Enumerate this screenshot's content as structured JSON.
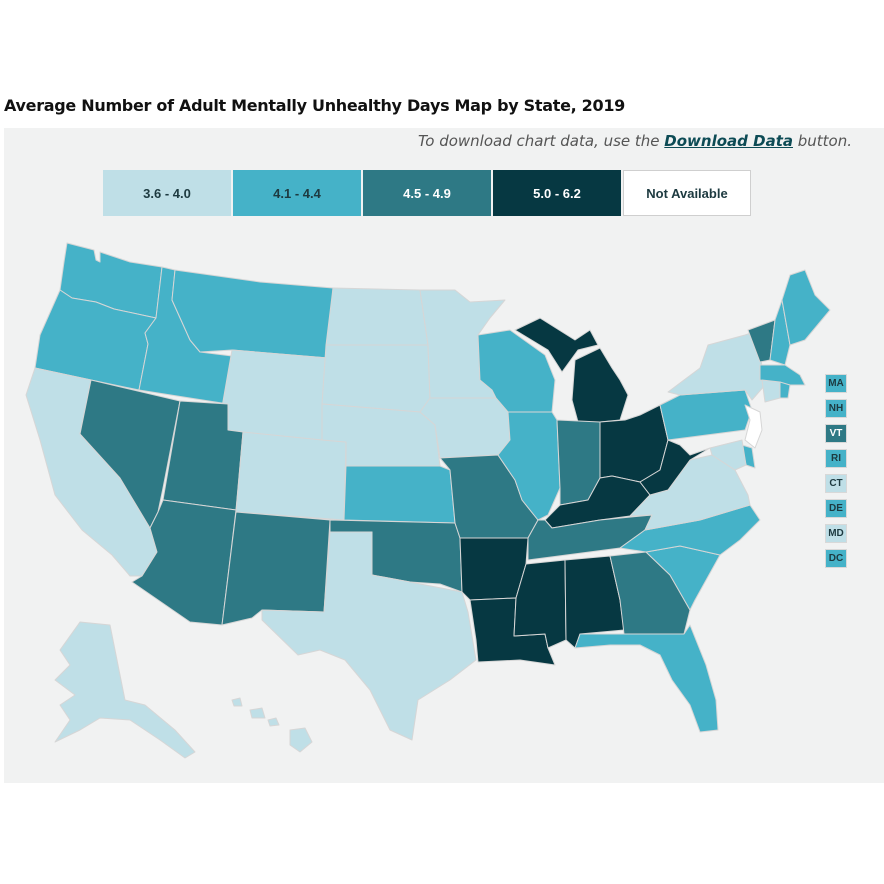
{
  "title": "Average Number of Adult Mentally Unhealthy Days Map by State, 2019",
  "note": {
    "prefix": "To download chart data, use the ",
    "link": "Download Data",
    "suffix": " button."
  },
  "colors": {
    "c1": "#bfdfe7",
    "c2": "#45b2c8",
    "c3": "#2e7985",
    "c4": "#063842",
    "na": "#ffffff"
  },
  "legend": [
    {
      "label": "3.6 - 4.0",
      "cls": "c1"
    },
    {
      "label": "4.1 - 4.4",
      "cls": "c2"
    },
    {
      "label": "4.5 - 4.9",
      "cls": "c3"
    },
    {
      "label": "5.0 - 6.2",
      "cls": "c4"
    },
    {
      "label": "Not Available",
      "cls": "na"
    }
  ],
  "small_states": [
    {
      "abbr": "MA",
      "cls": "c2"
    },
    {
      "abbr": "NH",
      "cls": "c2"
    },
    {
      "abbr": "VT",
      "cls": "c3"
    },
    {
      "abbr": "RI",
      "cls": "c2"
    },
    {
      "abbr": "CT",
      "cls": "c1"
    },
    {
      "abbr": "DE",
      "cls": "c2"
    },
    {
      "abbr": "MD",
      "cls": "c1"
    },
    {
      "abbr": "DC",
      "cls": "c2"
    }
  ],
  "states": {
    "WA": "c2",
    "OR": "c2",
    "CA": "c1",
    "ID": "c2",
    "NV": "c3",
    "MT": "c2",
    "WY": "c1",
    "UT": "c3",
    "AZ": "c3",
    "CO": "c1",
    "NM": "c3",
    "ND": "c1",
    "SD": "c1",
    "NE": "c1",
    "KS": "c2",
    "OK": "c3",
    "TX": "c1",
    "MN": "c1",
    "IA": "c1",
    "MO": "c3",
    "AR": "c4",
    "LA": "c4",
    "WI": "c2",
    "IL": "c2",
    "MI": "c4",
    "IN": "c3",
    "OH": "c4",
    "KY": "c4",
    "TN": "c3",
    "MS": "c4",
    "AL": "c4",
    "GA": "c3",
    "FL": "c2",
    "SC": "c2",
    "NC": "c2",
    "VA": "c1",
    "WV": "c4",
    "PA": "c2",
    "NY": "c1",
    "NJ": "na",
    "VT": "c3",
    "NH": "c2",
    "ME": "c2",
    "MA": "c2",
    "CT": "c1",
    "RI": "c2",
    "DE": "c2",
    "MD": "c1",
    "AK": "c1",
    "HI": "c1"
  }
}
